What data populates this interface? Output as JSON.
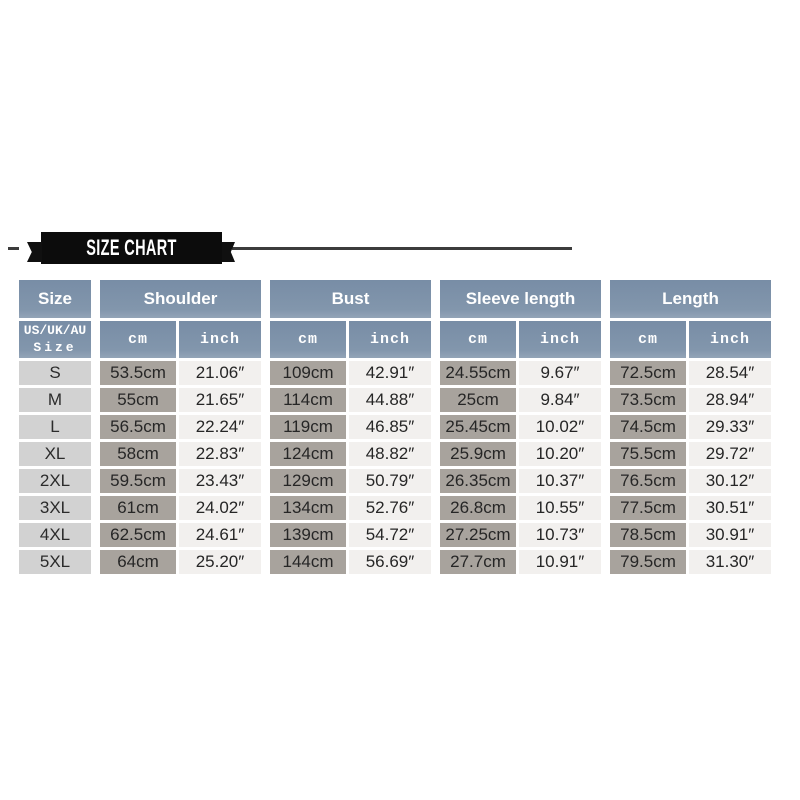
{
  "banner": {
    "title": "SIZE CHART"
  },
  "table": {
    "col_size_label": "Size",
    "groups": [
      "Shoulder",
      "Bust",
      "Sleeve length",
      "Length"
    ],
    "size_subheader_line1": "US/UK/AU",
    "size_subheader_line2": "Size",
    "unit_cm": "cm",
    "unit_inch": "inch",
    "rows": [
      {
        "size": "S",
        "cells": [
          "53.5cm",
          "21.06″",
          "109cm",
          "42.91″",
          "24.55cm",
          "9.67″",
          "72.5cm",
          "28.54″"
        ]
      },
      {
        "size": "M",
        "cells": [
          "55cm",
          "21.65″",
          "114cm",
          "44.88″",
          "25cm",
          "9.84″",
          "73.5cm",
          "28.94″"
        ]
      },
      {
        "size": "L",
        "cells": [
          "56.5cm",
          "22.24″",
          "119cm",
          "46.85″",
          "25.45cm",
          "10.02″",
          "74.5cm",
          "29.33″"
        ]
      },
      {
        "size": "XL",
        "cells": [
          "58cm",
          "22.83″",
          "124cm",
          "48.82″",
          "25.9cm",
          "10.20″",
          "75.5cm",
          "29.72″"
        ]
      },
      {
        "size": "2XL",
        "cells": [
          "59.5cm",
          "23.43″",
          "129cm",
          "50.79″",
          "26.35cm",
          "10.37″",
          "76.5cm",
          "30.12″"
        ]
      },
      {
        "size": "3XL",
        "cells": [
          "61cm",
          "24.02″",
          "134cm",
          "52.76″",
          "26.8cm",
          "10.55″",
          "77.5cm",
          "30.51″"
        ]
      },
      {
        "size": "4XL",
        "cells": [
          "62.5cm",
          "24.61″",
          "139cm",
          "54.72″",
          "27.25cm",
          "10.73″",
          "78.5cm",
          "30.91″"
        ]
      },
      {
        "size": "5XL",
        "cells": [
          "64cm",
          "25.20″",
          "144cm",
          "56.69″",
          "27.7cm",
          "10.91″",
          "79.5cm",
          "31.30″"
        ]
      }
    ]
  },
  "colors": {
    "header_blue": "#8296ac",
    "size_cell_gray": "#d2d2d2",
    "cm_cell_taupe": "#a8a39d",
    "inch_cell_light": "#f2f0ee",
    "ribbon_black": "#0c0c0c",
    "line_gray": "#3c3c3c"
  }
}
